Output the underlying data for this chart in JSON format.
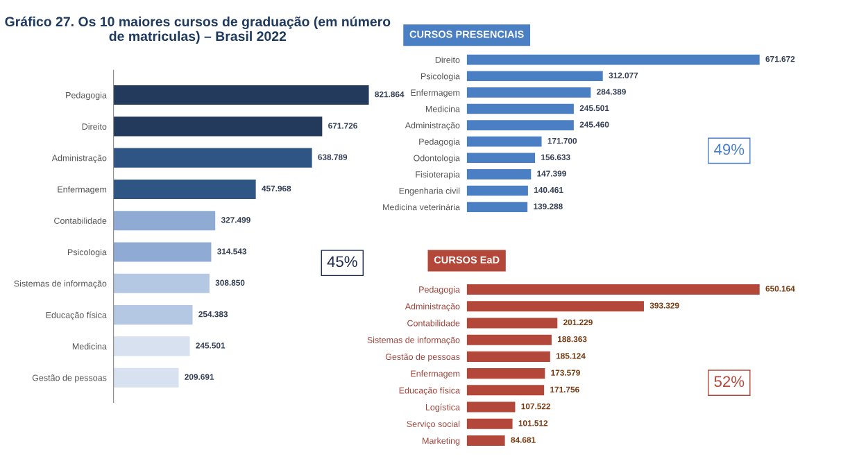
{
  "chart_data": [
    {
      "type": "bar",
      "orientation": "horizontal",
      "title": "Gráfico 27. Os 10 maiores cursos de graduação (em número de matriculas) – Brasil 2022",
      "categories": [
        "Pedagogia",
        "Direito",
        "Administração",
        "Enfermagem",
        "Contabilidade",
        "Psicologia",
        "Sistemas de informação",
        "Educação física",
        "Medicina",
        "Gestão de pessoas"
      ],
      "values": [
        821864,
        671726,
        638789,
        457968,
        327499,
        314543,
        308850,
        254383,
        245501,
        209691
      ],
      "value_labels": [
        "821.864",
        "671.726",
        "638.789",
        "457.968",
        "327.499",
        "314.543",
        "308.850",
        "254.383",
        "245.501",
        "209.691"
      ],
      "colors": [
        "#243a5c",
        "#243a5c",
        "#2f5584",
        "#2f5584",
        "#8faad3",
        "#8faad3",
        "#b5c8e3",
        "#b5c8e3",
        "#d7e1ef",
        "#d7e1ef"
      ],
      "annotations": [
        "45%"
      ],
      "tick_labels": "y",
      "grid": false
    },
    {
      "type": "bar",
      "orientation": "horizontal",
      "title": "CURSOS PRESENCIAIS",
      "categories": [
        "Direito",
        "Psicologia",
        "Enfermagem",
        "Medicina",
        "Administração",
        "Pedagogia",
        "Odontologia",
        "Fisioterapia",
        "Engenharia civil",
        "Medicina veterinária"
      ],
      "values": [
        671672,
        312077,
        284389,
        245501,
        245460,
        171700,
        156633,
        147399,
        140461,
        139288
      ],
      "value_labels": [
        "671.672",
        "312.077",
        "284.389",
        "245.501",
        "245.460",
        "171.700",
        "156.633",
        "147.399",
        "140.461",
        "139.288"
      ],
      "color": "#4a7fc4",
      "annotations": [
        "49%"
      ],
      "tick_labels": "y",
      "grid": false
    },
    {
      "type": "bar",
      "orientation": "horizontal",
      "title": "CURSOS EaD",
      "categories": [
        "Pedagogia",
        "Administração",
        "Contabilidade",
        "Sistemas de informação",
        "Gestão de pessoas",
        "Enfermagem",
        "Educação física",
        "Logística",
        "Serviço social",
        "Marketing"
      ],
      "values": [
        650164,
        393329,
        201229,
        188363,
        185124,
        173579,
        171756,
        107522,
        101512,
        84681
      ],
      "value_labels": [
        "650.164",
        "393.329",
        "201.229",
        "188.363",
        "185.124",
        "173.579",
        "171.756",
        "107.522",
        "101.512",
        "84.681"
      ],
      "color": "#b3473a",
      "annotations": [
        "52%"
      ],
      "tick_labels": "y",
      "grid": false
    }
  ]
}
